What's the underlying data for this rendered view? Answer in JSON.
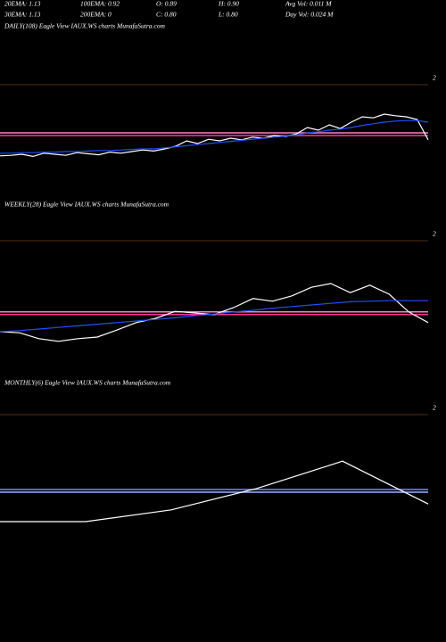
{
  "header": {
    "rows": [
      [
        "20EMA: 1.13",
        "100EMA: 0.92",
        "O: 0.89",
        "H: 0.90",
        "Avg Vol: 0.011 M"
      ],
      [
        "30EMA: 1.13",
        "200EMA: 0",
        "C: 0.80",
        "L: 0.80",
        "Day Vol: 0.024 M"
      ]
    ]
  },
  "chart_data": [
    {
      "type": "line",
      "title": "DAILY(108) Eagle View  IAUX.WS charts MunafaSutra.com",
      "ylim": [
        0,
        2
      ],
      "yticks": [
        2
      ],
      "levels": [
        {
          "value": 1.1,
          "color": "#ff7fbf"
        },
        {
          "value": 1.05,
          "color": "#ff3399"
        }
      ],
      "series": [
        {
          "color": "#ffffff",
          "values": [
            0.67,
            0.68,
            0.7,
            0.66,
            0.72,
            0.7,
            0.68,
            0.73,
            0.71,
            0.69,
            0.74,
            0.72,
            0.75,
            0.78,
            0.76,
            0.8,
            0.85,
            0.95,
            0.9,
            0.98,
            0.95,
            1.0,
            0.97,
            1.02,
            1.0,
            1.05,
            1.03,
            1.08,
            1.2,
            1.15,
            1.25,
            1.18,
            1.3,
            1.4,
            1.38,
            1.45,
            1.42,
            1.4,
            1.35,
            0.97
          ]
        },
        {
          "color": "#1e4fff",
          "values": [
            0.72,
            0.72,
            0.73,
            0.73,
            0.74,
            0.74,
            0.75,
            0.75,
            0.76,
            0.77,
            0.77,
            0.78,
            0.79,
            0.8,
            0.8,
            0.82,
            0.84,
            0.86,
            0.88,
            0.9,
            0.92,
            0.94,
            0.96,
            0.98,
            1.0,
            1.02,
            1.04,
            1.06,
            1.1,
            1.12,
            1.15,
            1.17,
            1.2,
            1.24,
            1.27,
            1.3,
            1.32,
            1.33,
            1.33,
            1.3
          ]
        }
      ]
    },
    {
      "type": "line",
      "title": "WEEKLY(28) Eagle View  IAUX.WS charts MunafaSutra.com",
      "ylim": [
        0,
        2
      ],
      "yticks": [
        2
      ],
      "levels": [
        {
          "value": 0.67,
          "color": "#ff7fbf"
        },
        {
          "value": 0.62,
          "color": "#ff3399"
        }
      ],
      "series": [
        {
          "color": "#ffffff",
          "values": [
            0.3,
            0.28,
            0.17,
            0.12,
            0.17,
            0.2,
            0.33,
            0.47,
            0.55,
            0.68,
            0.65,
            0.62,
            0.75,
            0.92,
            0.87,
            0.97,
            1.13,
            1.2,
            1.03,
            1.17,
            1.0,
            0.67,
            0.47
          ]
        },
        {
          "color": "#1e4fff",
          "values": [
            0.3,
            0.32,
            0.35,
            0.38,
            0.41,
            0.44,
            0.47,
            0.5,
            0.53,
            0.56,
            0.6,
            0.63,
            0.67,
            0.7,
            0.74,
            0.77,
            0.8,
            0.83,
            0.86,
            0.87,
            0.88,
            0.88,
            0.88
          ]
        }
      ]
    },
    {
      "type": "line",
      "title": "MONTHLY(6) Eagle View  IAUX.WS charts MunafaSutra.com",
      "ylim": [
        0,
        2
      ],
      "yticks": [
        2
      ],
      "levels": [
        {
          "value": 0.6,
          "color": "#6f8fff"
        },
        {
          "value": 0.55,
          "color": "#9fb4ff"
        }
      ],
      "series": [
        {
          "color": "#ffffff",
          "values": [
            0,
            0,
            0.22,
            0.62,
            1.13,
            0.33
          ]
        }
      ]
    }
  ]
}
